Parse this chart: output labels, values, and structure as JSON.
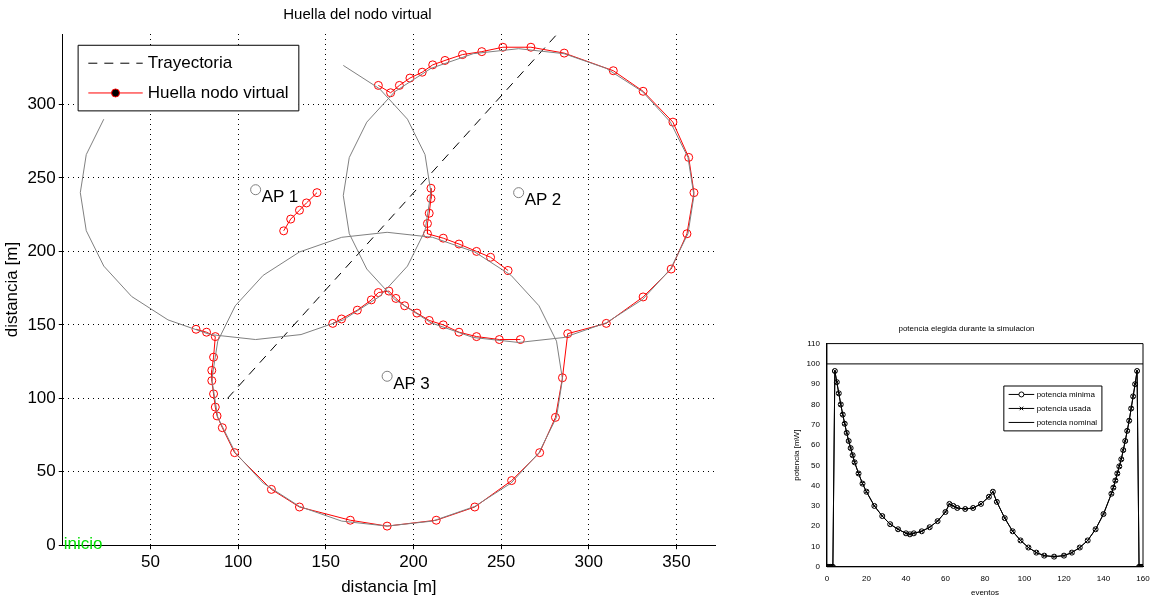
{
  "chart_data": [
    {
      "type": "line",
      "title": "Huella del nodo virtual",
      "xlabel": "distancia [m]",
      "ylabel": "distancia [m]",
      "xlim": [
        0,
        372
      ],
      "ylim": [
        0,
        348
      ],
      "xticks": [
        50,
        100,
        150,
        200,
        250,
        300,
        350
      ],
      "yticks": [
        0,
        50,
        100,
        150,
        200,
        250,
        300
      ],
      "grid": true,
      "legend": "top left",
      "annotations": [
        {
          "text": "AP 1",
          "x": 110,
          "y": 242
        },
        {
          "text": "AP 2",
          "x": 260,
          "y": 240
        },
        {
          "text": "AP 3",
          "x": 185,
          "y": 115
        },
        "inicio"
      ],
      "series": [
        {
          "name": "Trayectoria",
          "type": "line",
          "color": "#000000",
          "line_style": "dashed",
          "marker": "none",
          "x": [
            94,
            282
          ],
          "values": [
            100,
            348
          ]
        },
        {
          "name": "Huella nodo virtual",
          "type": "line",
          "color": "#ff0000",
          "line_style": "solid",
          "marker": "circle",
          "x": [
            76,
            82,
            87,
            86,
            85,
            85,
            86,
            87,
            88,
            91,
            98,
            119,
            135,
            164,
            185,
            213,
            235,
            256,
            272,
            281,
            285,
            288,
            310,
            331,
            347,
            356,
            360,
            357,
            348,
            331,
            314,
            286,
            267,
            251,
            239,
            228,
            218,
            211,
            205,
            198,
            192,
            187,
            180,
            null,
            154,
            159,
            168,
            176,
            180,
            186,
            190,
            195,
            202,
            209,
            217,
            226,
            236,
            249,
            261,
            null,
            210,
            210,
            209,
            208,
            208,
            217,
            226,
            236,
            244,
            254,
            null,
            126,
            130,
            135,
            139,
            145
          ],
          "values": [
            147,
            145,
            142,
            128,
            119,
            112,
            103,
            94,
            88,
            80,
            63,
            38,
            26,
            17,
            13,
            17,
            26,
            44,
            63,
            87,
            114,
            144,
            151,
            169,
            188,
            212,
            240,
            264,
            288,
            309,
            323,
            335,
            339,
            339,
            336,
            334,
            330,
            327,
            322,
            318,
            313,
            308,
            313,
            null,
            151,
            154,
            160,
            167,
            172,
            173,
            168,
            163,
            158,
            153,
            150,
            145,
            142,
            140,
            140,
            null,
            243,
            236,
            226,
            219,
            212,
            209,
            205,
            200,
            196,
            187,
            null,
            214,
            222,
            228,
            233,
            240
          ]
        },
        {
          "type": "line",
          "color": "#808080",
          "line_style": "solid",
          "marker": "none",
          "x": [
            210,
            206.6,
            196.6,
            180.7,
            160,
            135.9,
            110,
            84.1,
            60,
            39.3,
            23.4,
            13.4,
            10,
            13.4,
            23.4,
            39.3,
            60,
            84.1,
            110,
            135.9,
            160,
            180.7,
            196.6,
            206.6,
            210
          ],
          "values": [
            240,
            265.9,
            290,
            310.7,
            326.6,
            null,
            null,
            null,
            null,
            null,
            290,
            265.9,
            240,
            214.1,
            190,
            169.3,
            153.4,
            143.4,
            140,
            143.4,
            153.4,
            169.3,
            190,
            214.1,
            240
          ]
        },
        {
          "type": "line",
          "color": "#808080",
          "line_style": "solid",
          "marker": "none",
          "x": [
            360,
            356.6,
            346.6,
            330.7,
            310,
            285.9,
            260,
            234.1,
            210,
            189.3,
            173.4,
            163.4,
            160,
            null,
            160,
            163.4,
            173.4,
            189.3,
            210,
            234.1,
            260,
            285.9,
            310,
            330.7,
            346.6,
            356.6,
            360
          ],
          "values": [
            238,
            263.9,
            288,
            308.7,
            324.6,
            334.6,
            338,
            334.6,
            324.6,
            308.7,
            288,
            263.9,
            238,
            null,
            238,
            212.1,
            188,
            167.3,
            151.4,
            141.4,
            138,
            141.4,
            151.4,
            167.3,
            188,
            212.1,
            238
          ]
        },
        {
          "type": "line",
          "color": "#808080",
          "line_style": "solid",
          "marker": "none",
          "x": [
            285,
            281.6,
            271.6,
            255.7,
            235,
            210.9,
            185,
            159.1,
            135,
            114.3,
            98.4,
            88.4,
            85,
            null,
            85,
            88.4,
            98.4,
            114.3,
            135,
            159.1,
            185,
            210.9,
            235,
            255.7,
            271.6,
            281.6,
            285
          ],
          "values": [
            113,
            138.9,
            163,
            183.7,
            199.6,
            209.6,
            213,
            209.6,
            199.6,
            183.7,
            163,
            138.9,
            113,
            null,
            113,
            87.1,
            63,
            42.3,
            26.4,
            16.4,
            13,
            16.4,
            26.4,
            42.3,
            63,
            87.1,
            113
          ]
        },
        {
          "type": "scatter",
          "color": "#808080",
          "marker": "circle",
          "x": [
            110,
            260,
            185
          ],
          "values": [
            242,
            240,
            115
          ]
        }
      ]
    },
    {
      "type": "line",
      "title": "potencia elegida durante la simulacion",
      "xlabel": "eventos",
      "ylabel": "potencia [mW]",
      "xlim": [
        0,
        160
      ],
      "ylim": [
        0,
        110
      ],
      "xticks": [
        0,
        20,
        40,
        60,
        80,
        100,
        120,
        140,
        160
      ],
      "yticks": [
        0,
        10,
        20,
        30,
        40,
        50,
        60,
        70,
        80,
        90,
        100,
        110
      ],
      "legend": "top right",
      "series": [
        {
          "name": "potencia minima",
          "type": "line",
          "color": "#000000",
          "marker": "circle",
          "x": [
            0,
            1,
            2,
            3,
            4,
            5,
            6,
            7,
            8,
            9,
            10,
            11,
            12,
            13,
            14,
            16,
            18,
            20,
            24,
            28,
            32,
            36,
            40,
            42,
            44,
            48,
            52,
            56,
            60,
            62,
            64,
            66,
            70,
            74,
            78,
            82,
            84,
            86,
            90,
            94,
            98,
            102,
            106,
            110,
            115,
            120,
            124,
            128,
            132,
            136,
            140,
            144,
            145,
            146,
            147,
            148,
            149,
            150,
            151,
            152,
            153,
            154,
            155,
            156,
            157,
            158,
            159,
            160
          ],
          "values": [
            0,
            0,
            0,
            0,
            96.5,
            91,
            85.5,
            80,
            75,
            70.5,
            66,
            62,
            58.5,
            55,
            51.5,
            46,
            41,
            37,
            30,
            25,
            21,
            18.5,
            16.5,
            16,
            16.5,
            17.5,
            19.5,
            22.5,
            27,
            31,
            30,
            29,
            28.5,
            29,
            31,
            34.5,
            37,
            32,
            24,
            17.5,
            13,
            9.5,
            7,
            5.5,
            5,
            5.5,
            7,
            9.5,
            13,
            18.5,
            26,
            36,
            39,
            42.5,
            46,
            49.5,
            53,
            57.5,
            62,
            67,
            72,
            78,
            84,
            90,
            96.5,
            0,
            0,
            0
          ]
        },
        {
          "name": "potencia usada",
          "type": "line",
          "color": "#000000",
          "marker": "cross",
          "x": [
            0,
            1,
            2,
            3,
            4,
            5,
            6,
            7,
            8,
            9,
            10,
            11,
            12,
            13,
            14,
            16,
            18,
            20,
            24,
            28,
            32,
            36,
            40,
            42,
            44,
            48,
            52,
            56,
            60,
            62,
            64,
            66,
            70,
            74,
            78,
            82,
            84,
            86,
            90,
            94,
            98,
            102,
            106,
            110,
            115,
            120,
            124,
            128,
            132,
            136,
            140,
            144,
            145,
            146,
            147,
            148,
            149,
            150,
            151,
            152,
            153,
            154,
            155,
            156,
            157,
            158,
            159,
            160
          ],
          "values": [
            0,
            0,
            0,
            0,
            96.5,
            91,
            85.5,
            80,
            75,
            70.5,
            66,
            62,
            58.5,
            55,
            51.5,
            46,
            41,
            37,
            30,
            25,
            21,
            18.5,
            16.5,
            16,
            16.5,
            17.5,
            19.5,
            22.5,
            27,
            31,
            30,
            29,
            28.5,
            29,
            31,
            34.5,
            37,
            32,
            24,
            17.5,
            13,
            9.5,
            7,
            5.5,
            5,
            5.5,
            7,
            9.5,
            13,
            18.5,
            26,
            36,
            39,
            42.5,
            46,
            49.5,
            53,
            57.5,
            62,
            67,
            72,
            78,
            84,
            90,
            96.5,
            0,
            0,
            0
          ]
        },
        {
          "name": "potencia nominal",
          "type": "line",
          "color": "#000000",
          "marker": "none",
          "x": [
            0,
            160
          ],
          "values": [
            100,
            100
          ]
        }
      ]
    }
  ]
}
